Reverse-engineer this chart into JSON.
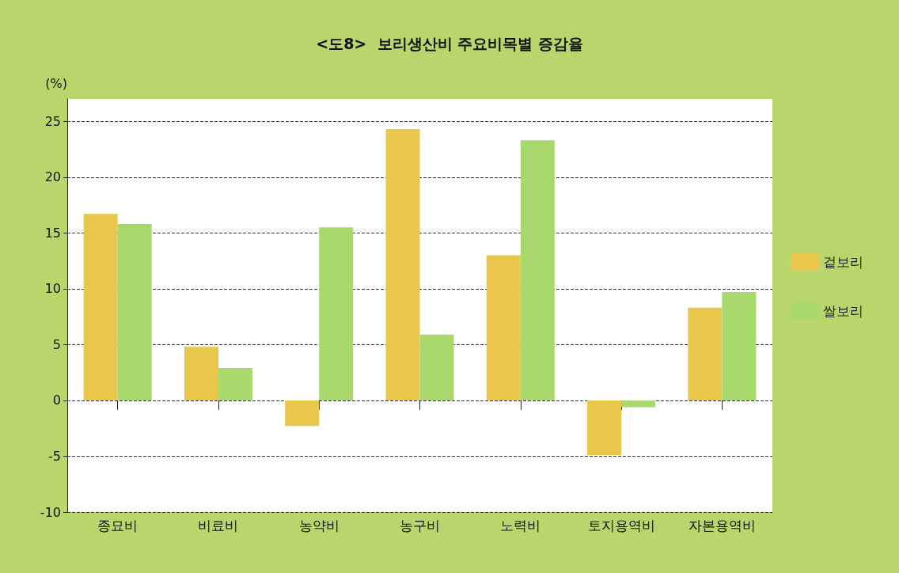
{
  "chart_data": {
    "type": "bar",
    "title": "<도8>  보리생산비 주요비목별 증감율",
    "ylabel": "(%)",
    "categories": [
      "종묘비",
      "비료비",
      "농약비",
      "농구비",
      "노력비",
      "토지용역비",
      "자본용역비"
    ],
    "series": [
      {
        "name": "겉보리",
        "color": "#e8c74c",
        "values": [
          16.7,
          4.8,
          -2.3,
          24.3,
          13.0,
          -4.9,
          8.3
        ]
      },
      {
        "name": "쌀보리",
        "color": "#a9d86c",
        "values": [
          15.8,
          2.9,
          15.5,
          5.9,
          23.3,
          -0.6,
          9.7
        ]
      }
    ],
    "ylim": [
      -10,
      27
    ],
    "yticks": [
      -10,
      -5,
      0,
      5,
      10,
      15,
      20,
      25
    ],
    "grid": "y",
    "legend": "right"
  }
}
